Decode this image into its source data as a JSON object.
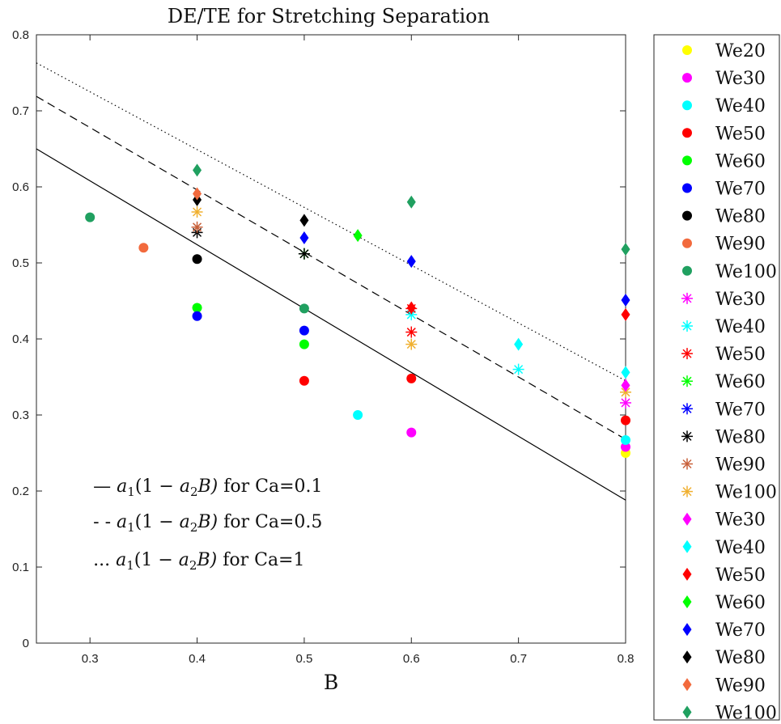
{
  "chart_data": {
    "type": "scatter",
    "title": "DE/TE for Stretching Separation",
    "xlabel": "B",
    "ylabel": "",
    "xlim": [
      0.25,
      0.8
    ],
    "ylim": [
      0,
      0.8
    ],
    "xticks": [
      "0.3",
      "0.4",
      "0.5",
      "0.6",
      "0.7",
      "0.8"
    ],
    "yticks": [
      "0",
      "0.1",
      "0.2",
      "0.3",
      "0.4",
      "0.5",
      "0.6",
      "0.7",
      "0.8"
    ],
    "grid": false,
    "legend_position": "outside-right",
    "lines": [
      {
        "name": "Ca=0.1",
        "style": "solid",
        "x": [
          0.25,
          0.8
        ],
        "y": [
          0.65,
          0.188
        ]
      },
      {
        "name": "Ca=0.5",
        "style": "dashed",
        "x": [
          0.25,
          0.8
        ],
        "y": [
          0.719,
          0.268
        ]
      },
      {
        "name": "Ca=1",
        "style": "dotted",
        "x": [
          0.25,
          0.8
        ],
        "y": [
          0.763,
          0.345
        ]
      }
    ],
    "annotations": [
      {
        "prefix": "—",
        "formula": [
          "a",
          "1",
          "(1 − ",
          "a",
          "2",
          "B)"
        ],
        "suffix": " for Ca=0.1",
        "x": 0.303,
        "y": 0.199
      },
      {
        "prefix": "- -",
        "formula": [
          "a",
          "1",
          "(1 − ",
          "a",
          "2",
          "B)"
        ],
        "suffix": " for Ca=0.5",
        "x": 0.303,
        "y": 0.152
      },
      {
        "prefix": "...",
        "formula": [
          "a",
          "1",
          "(1 − ",
          "a",
          "2",
          "B)"
        ],
        "suffix": " for Ca=1",
        "x": 0.303,
        "y": 0.102
      }
    ],
    "series": [
      {
        "name": "We20",
        "marker": "circle",
        "color": "#ffff00",
        "points": [
          [
            0.8,
            0.25
          ]
        ]
      },
      {
        "name": "We30",
        "marker": "circle",
        "color": "#ff00ff",
        "points": [
          [
            0.6,
            0.277
          ],
          [
            0.8,
            0.258
          ]
        ]
      },
      {
        "name": "We40",
        "marker": "circle",
        "color": "#00ffff",
        "points": [
          [
            0.55,
            0.3
          ],
          [
            0.8,
            0.267
          ]
        ]
      },
      {
        "name": "We50",
        "marker": "circle",
        "color": "#ff0000",
        "points": [
          [
            0.5,
            0.345
          ],
          [
            0.6,
            0.348
          ],
          [
            0.8,
            0.293
          ]
        ]
      },
      {
        "name": "We60",
        "marker": "circle",
        "color": "#00ff00",
        "points": [
          [
            0.4,
            0.441
          ],
          [
            0.5,
            0.393
          ]
        ]
      },
      {
        "name": "We70",
        "marker": "circle",
        "color": "#0000ff",
        "points": [
          [
            0.4,
            0.43
          ],
          [
            0.5,
            0.411
          ]
        ]
      },
      {
        "name": "We80",
        "marker": "circle",
        "color": "#000000",
        "points": [
          [
            0.4,
            0.505
          ]
        ]
      },
      {
        "name": "We90",
        "marker": "circle",
        "color": "#f26a3d",
        "points": [
          [
            0.35,
            0.52
          ]
        ]
      },
      {
        "name": "We100",
        "marker": "circle",
        "color": "#20a060",
        "points": [
          [
            0.3,
            0.56
          ],
          [
            0.5,
            0.44
          ]
        ]
      },
      {
        "name": "We30",
        "marker": "asterisk",
        "color": "#ff00ff",
        "points": [
          [
            0.8,
            0.316
          ]
        ]
      },
      {
        "name": "We40",
        "marker": "asterisk",
        "color": "#00ffff",
        "points": [
          [
            0.6,
            0.432
          ],
          [
            0.7,
            0.36
          ]
        ]
      },
      {
        "name": "We50",
        "marker": "asterisk",
        "color": "#ff0000",
        "points": [
          [
            0.6,
            0.409
          ],
          [
            0.6,
            0.44
          ]
        ]
      },
      {
        "name": "We60",
        "marker": "asterisk",
        "color": "#00ff00",
        "points": [
          [
            0.5,
            0.512
          ]
        ]
      },
      {
        "name": "We70",
        "marker": "asterisk",
        "color": "#0000ff",
        "points": []
      },
      {
        "name": "We80",
        "marker": "asterisk",
        "color": "#000000",
        "points": [
          [
            0.4,
            0.54
          ],
          [
            0.5,
            0.512
          ]
        ]
      },
      {
        "name": "We90",
        "marker": "asterisk",
        "color": "#c8603a",
        "points": [
          [
            0.4,
            0.547
          ]
        ]
      },
      {
        "name": "We100",
        "marker": "asterisk",
        "color": "#f0b030",
        "points": [
          [
            0.4,
            0.567
          ],
          [
            0.6,
            0.393
          ],
          [
            0.8,
            0.33
          ]
        ]
      },
      {
        "name": "We30",
        "marker": "diamond",
        "color": "#ff00ff",
        "points": [
          [
            0.8,
            0.339
          ]
        ]
      },
      {
        "name": "We40",
        "marker": "diamond",
        "color": "#00ffff",
        "points": [
          [
            0.7,
            0.393
          ],
          [
            0.8,
            0.356
          ]
        ]
      },
      {
        "name": "We50",
        "marker": "diamond",
        "color": "#ff0000",
        "points": [
          [
            0.6,
            0.441
          ],
          [
            0.8,
            0.432
          ]
        ]
      },
      {
        "name": "We60",
        "marker": "diamond",
        "color": "#00ff00",
        "points": [
          [
            0.55,
            0.536
          ]
        ]
      },
      {
        "name": "We70",
        "marker": "diamond",
        "color": "#0000ff",
        "points": [
          [
            0.5,
            0.533
          ],
          [
            0.6,
            0.502
          ],
          [
            0.8,
            0.451
          ]
        ]
      },
      {
        "name": "We80",
        "marker": "diamond",
        "color": "#000000",
        "points": [
          [
            0.4,
            0.583
          ],
          [
            0.5,
            0.556
          ]
        ]
      },
      {
        "name": "We90",
        "marker": "diamond",
        "color": "#f26a3d",
        "points": [
          [
            0.4,
            0.591
          ]
        ]
      },
      {
        "name": "We100",
        "marker": "diamond",
        "color": "#20a060",
        "points": [
          [
            0.4,
            0.622
          ],
          [
            0.6,
            0.58
          ],
          [
            0.8,
            0.518
          ]
        ]
      }
    ]
  }
}
